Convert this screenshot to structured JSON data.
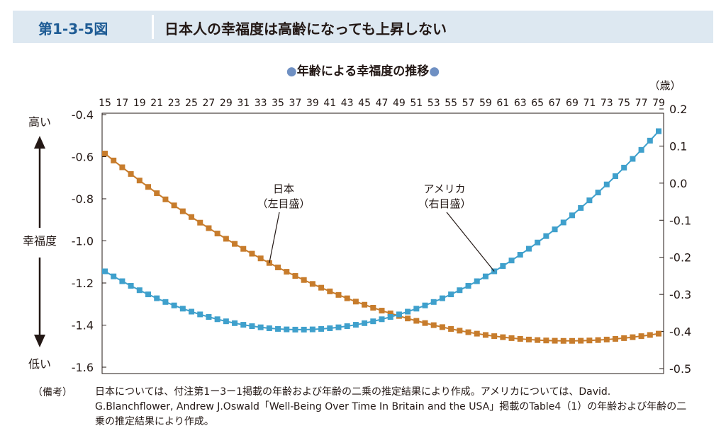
{
  "header": {
    "figure_number": "第1-3-5図",
    "title": "日本人の幸福度は高齢になっても上昇しない"
  },
  "note": {
    "label": "（備考）",
    "text": "日本については、付注第1ー3ー1掲載の年齢および年齢の二乗の推定結果により作成。アメリカについては、David. G.Blanchflower, Andrew J.Oswald「Well-Being Over Time In Britain and the USA」掲載のTable4（1）の年齢および年齢の二乗の推定結果により作成。"
  },
  "colors": {
    "japan": "#c77c2c",
    "usa": "#3fa0cc",
    "title_dot": "#6f90c3"
  },
  "chart_data": {
    "type": "line",
    "title": "●年齢による幸福度の推移●",
    "x_unit": "（歳）",
    "x_ticks": [
      15,
      17,
      19,
      21,
      23,
      25,
      27,
      29,
      31,
      33,
      35,
      37,
      39,
      41,
      43,
      45,
      47,
      49,
      51,
      53,
      55,
      57,
      59,
      61,
      63,
      65,
      67,
      69,
      71,
      73,
      75,
      77,
      79
    ],
    "xlim": [
      15,
      79
    ],
    "y_left_ticks": [
      "-0.4",
      "-0.6",
      "-0.8",
      "-1.0",
      "-1.2",
      "-1.4",
      "-1.6"
    ],
    "y_right_ticks": [
      "0.2",
      "0.1",
      "0.0",
      "-0.1",
      "-0.2",
      "-0.3",
      "-0.4",
      "-0.5"
    ],
    "ylim_left": [
      -1.6,
      -0.4
    ],
    "ylim_right": [
      -0.5,
      0.2
    ],
    "y_side_labels": {
      "high": "高い",
      "middle": "幸福度",
      "low": "低い"
    },
    "series": [
      {
        "name": "日本",
        "axis_note": "（左目盛）",
        "axis": "left",
        "vertex_age": 68.5,
        "start_value": -0.585,
        "vertex_value": -1.475
      },
      {
        "name": "アメリカ",
        "axis_note": "（右目盛）",
        "axis": "right",
        "vertex_age": 37.5,
        "start_value": -0.26,
        "vertex_value": -0.395,
        "end_value": 0.14
      }
    ]
  }
}
